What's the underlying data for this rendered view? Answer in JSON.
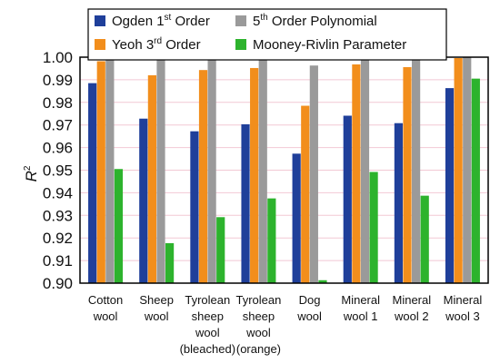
{
  "chart_data": {
    "type": "bar",
    "ylabel": "R",
    "ylabel_superscript": "2",
    "ylim": [
      0.9,
      1.0
    ],
    "yticks": [
      "0.90",
      "0.91",
      "0.92",
      "0.93",
      "0.94",
      "0.95",
      "0.96",
      "0.97",
      "0.98",
      "0.99",
      "1.00"
    ],
    "grid": true,
    "legend_position": "top",
    "categories": [
      [
        "Cotton",
        "wool"
      ],
      [
        "Sheep",
        "wool"
      ],
      [
        "Tyrolean",
        "sheep",
        "wool",
        "(bleached)"
      ],
      [
        "Tyrolean",
        "sheep",
        "wool",
        "(orange)"
      ],
      [
        "Dog",
        "wool"
      ],
      [
        "Mineral",
        "wool 1"
      ],
      [
        "Mineral",
        "wool 2"
      ],
      [
        "Mineral",
        "wool 3"
      ]
    ],
    "series": [
      {
        "name": "Ogden",
        "name_sup": "st",
        "name_suffix": " Order",
        "name_prefix_num": "1",
        "color": "#1f3f9a",
        "values": [
          0.9885,
          0.9728,
          0.9672,
          0.9703,
          0.9573,
          0.9741,
          0.9708,
          0.9863
        ]
      },
      {
        "name": "Yeoh",
        "name_sup": "rd",
        "name_suffix": " Order",
        "name_prefix_num": "3",
        "color": "#f28e1c",
        "values": [
          0.9982,
          0.992,
          0.9943,
          0.9952,
          0.9785,
          0.9968,
          0.9956,
          0.9996
        ]
      },
      {
        "name": "",
        "name_sup": "th",
        "name_suffix": " Order Polynomial",
        "name_prefix_num": "5",
        "color": "#9a9a9a",
        "values": [
          0.9998,
          0.9988,
          0.9994,
          0.9992,
          0.9963,
          0.9998,
          0.9998,
          1.0
        ]
      },
      {
        "name": "Mooney-Rivlin Parameter",
        "name_sup": "",
        "name_suffix": "",
        "name_prefix_num": "",
        "color": "#2db32d",
        "values": [
          0.9505,
          0.9177,
          0.9292,
          0.9375,
          0.9013,
          0.9492,
          0.9387,
          0.9905
        ]
      }
    ]
  }
}
